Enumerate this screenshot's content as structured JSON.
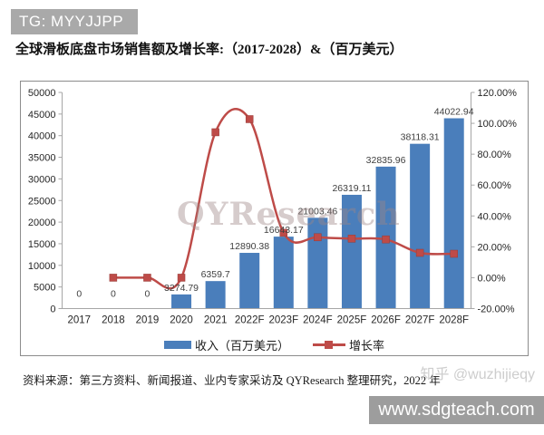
{
  "header": {
    "badge": "TG: MYYJJPP"
  },
  "title": "全球滑板底盘市场销售额及增长率:（2017-2028）&（百万美元）",
  "chart_data": {
    "type": "bar",
    "title": "全球滑板底盘市场销售额及增长率:（2017-2028）&（百万美元）",
    "categories": [
      "2017",
      "2018",
      "2019",
      "2020",
      "2021",
      "2022F",
      "2023F",
      "2024F",
      "2025F",
      "2026F",
      "2027F",
      "2028F"
    ],
    "series": [
      {
        "name": "收入（百万美元）",
        "type": "bar",
        "axis": "left",
        "color": "#4A7EBB",
        "values": [
          0,
          0,
          0,
          3274.79,
          6359.7,
          12890.38,
          16643.17,
          21003.46,
          26319.11,
          32835.96,
          38118.31,
          44022.94
        ]
      },
      {
        "name": "增长率",
        "type": "line",
        "axis": "right",
        "color": "#BE4B48",
        "marker": "square",
        "values_percent": [
          null,
          0,
          0,
          0,
          94.2,
          102.7,
          29.1,
          26.2,
          25.3,
          24.8,
          16.1,
          15.5
        ]
      }
    ],
    "left_axis": {
      "min": 0,
      "max": 50000,
      "ticks": [
        0,
        5000,
        10000,
        15000,
        20000,
        25000,
        30000,
        35000,
        40000,
        45000,
        50000
      ]
    },
    "right_axis": {
      "min": -20,
      "max": 120,
      "ticks": [
        -20,
        0,
        20,
        40,
        60,
        80,
        100,
        120
      ],
      "format": "percent2"
    },
    "grid": false,
    "legend_position": "bottom",
    "watermark": "QYResearch"
  },
  "legend": {
    "revenue": "收入（百万美元）",
    "growth": "增长率"
  },
  "footer": {
    "source": "资料来源：第三方资料、新闻报道、业内专家采访及 QYResearch 整理研究，2022 年",
    "zhihu_watermark": "知乎 @wuzhijieqy",
    "site_watermark": "www.sdgteach.com"
  },
  "colors": {
    "bar": "#4A7EBB",
    "line": "#BE4B48",
    "badge_bg": "#A9A9A9",
    "axis": "#A6A6A6",
    "tick_text": "#262626",
    "data_label": "#3F3F3F"
  }
}
